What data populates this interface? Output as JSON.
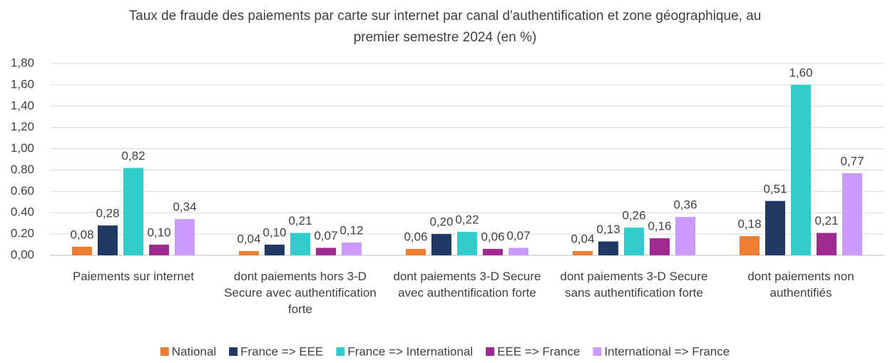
{
  "chart_data": {
    "type": "bar",
    "title": "Taux de fraude des paiements par carte sur internet par canal d'authentification et zone géographique, au premier semestre 2024 (en %)",
    "categories": [
      "Paiements sur internet",
      "dont paiements hors 3-D Secure avec authentification forte",
      "dont paiements 3-D Secure avec authentification forte",
      "dont paiements 3-D Secure sans authentification forte",
      "dont paiements non authentifiés"
    ],
    "series": [
      {
        "name": "National",
        "color": "#ed7d31",
        "values": [
          0.08,
          0.04,
          0.06,
          0.04,
          0.18
        ],
        "value_labels": [
          "0,08",
          "0,04",
          "0,06",
          "0,04",
          "0,18"
        ]
      },
      {
        "name": "France => EEE",
        "color": "#203864",
        "values": [
          0.28,
          0.1,
          0.2,
          0.13,
          0.51
        ],
        "value_labels": [
          "0,28",
          "0,10",
          "0,20",
          "0,13",
          "0,51"
        ]
      },
      {
        "name": "France => International",
        "color": "#33cccc",
        "values": [
          0.82,
          0.21,
          0.22,
          0.26,
          1.6
        ],
        "value_labels": [
          "0,82",
          "0,21",
          "0,22",
          "0,26",
          "1,60"
        ]
      },
      {
        "name": "EEE => France",
        "color": "#9e2a8f",
        "values": [
          0.1,
          0.07,
          0.06,
          0.16,
          0.21
        ],
        "value_labels": [
          "0,10",
          "0,07",
          "0,06",
          "0,16",
          "0,21"
        ]
      },
      {
        "name": "International => France",
        "color": "#cc99ff",
        "values": [
          0.34,
          0.12,
          0.07,
          0.36,
          0.77
        ],
        "value_labels": [
          "0,34",
          "0,12",
          "0,07",
          "0,36",
          "0,77"
        ]
      }
    ],
    "ylim": [
      0,
      1.8
    ],
    "yticks": [
      {
        "value": 0,
        "label": "0,00"
      },
      {
        "value": 0.2,
        "label": "0.20"
      },
      {
        "value": 0.4,
        "label": "0.40"
      },
      {
        "value": 0.6,
        "label": "0.60"
      },
      {
        "value": 0.8,
        "label": "0.80"
      },
      {
        "value": 1.0,
        "label": "1,00"
      },
      {
        "value": 1.2,
        "label": "1,20"
      },
      {
        "value": 1.4,
        "label": "1,40"
      },
      {
        "value": 1.6,
        "label": "1,60"
      },
      {
        "value": 1.8,
        "label": "1,80"
      }
    ],
    "grid": true,
    "legend": "bottom"
  }
}
